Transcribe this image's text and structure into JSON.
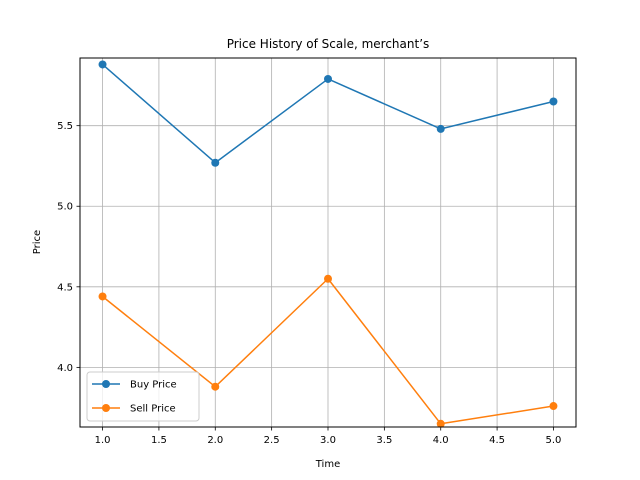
{
  "chart_data": {
    "type": "line",
    "title": "Price History of Scale, merchant’s",
    "xlabel": "Time",
    "ylabel": "Price",
    "x": [
      1,
      2,
      3,
      4,
      5
    ],
    "xlim": [
      0.8,
      5.2
    ],
    "ylim": [
      3.63,
      5.92
    ],
    "xticks": [
      "1.0",
      "1.5",
      "2.0",
      "2.5",
      "3.0",
      "3.5",
      "4.0",
      "4.5",
      "5.0"
    ],
    "yticks": [
      "4.0",
      "4.5",
      "5.0",
      "5.5"
    ],
    "grid": true,
    "legend_position": "lower-left",
    "series": [
      {
        "name": "Buy Price",
        "values": [
          5.88,
          5.27,
          5.79,
          5.48,
          5.65
        ],
        "color": "#1f77b4",
        "marker": "circle"
      },
      {
        "name": "Sell Price",
        "values": [
          4.44,
          3.88,
          4.55,
          3.65,
          3.76
        ],
        "color": "#ff7f0e",
        "marker": "circle"
      }
    ]
  }
}
